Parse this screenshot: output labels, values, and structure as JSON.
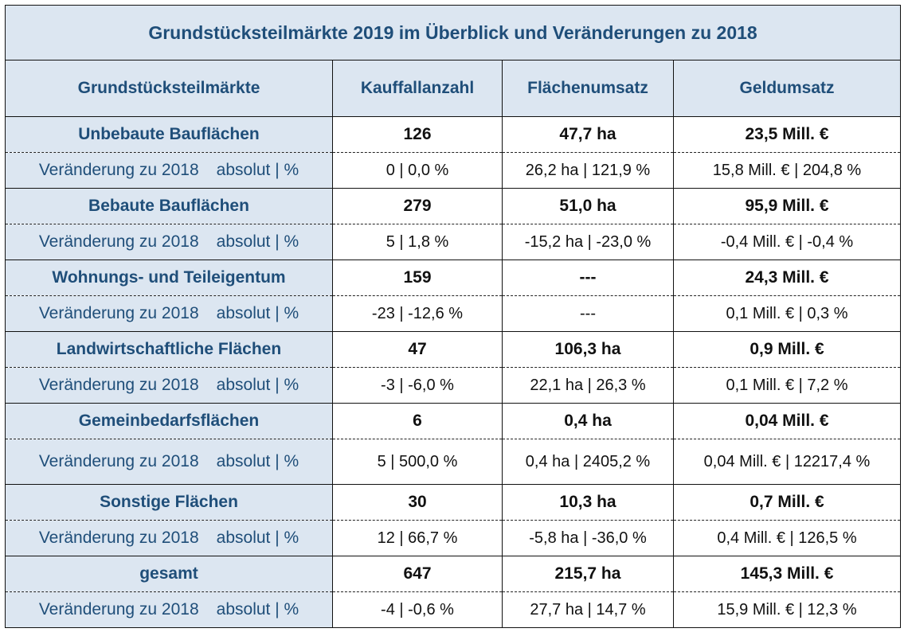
{
  "title": "Grundstücksteilmärkte 2019 im Überblick und Veränderungen zu 2018",
  "columns": [
    "Grundstücksteilmärkte",
    "Kauffallanzahl",
    "Flächenumsatz",
    "Geldumsatz"
  ],
  "change_label": {
    "text": "Veränderung zu 2018",
    "suffix": "absolut | %"
  },
  "colors": {
    "header_bg": "#dce6f1",
    "header_text": "#1f4e79",
    "value_text": "#111111"
  },
  "rows": [
    {
      "name": "Unbebaute  Bauflächen",
      "count": "126",
      "area": "47,7 ha",
      "money": "23,5  Mill. €",
      "change": {
        "count": "0 | 0,0 %",
        "area": "26,2 ha | 121,9 %",
        "money": "15,8 Mill. € | 204,8 %"
      }
    },
    {
      "name": "Bebaute Bauflächen",
      "count": "279",
      "area": "51,0 ha",
      "money": "95,9  Mill. €",
      "change": {
        "count": "5 | 1,8 %",
        "area": "-15,2 ha | -23,0 %",
        "money": "-0,4 Mill. € | -0,4 %"
      }
    },
    {
      "name": "Wohnungs- und Teileigentum",
      "count": "159",
      "area": "---",
      "money": "24,3  Mill. €",
      "change": {
        "count": "-23 | -12,6 %",
        "area": "---",
        "money": "0,1 Mill. € | 0,3 %"
      }
    },
    {
      "name": "Landwirtschaftliche Flächen",
      "count": "47",
      "area": "106,3 ha",
      "money": "0,9  Mill. €",
      "change": {
        "count": "-3 | -6,0 %",
        "area": "22,1 ha | 26,3 %",
        "money": "0,1 Mill. € | 7,2 %"
      }
    },
    {
      "name": "Gemeinbedarfsflächen",
      "count": "6",
      "area": "0,4 ha",
      "money": "0,04  Mill. €",
      "change": {
        "count": "5 | 500,0 %",
        "area": "0,4 ha | 2405,2 %",
        "money": "0,04 Mill. € | 12217,4 %"
      }
    },
    {
      "name": "Sonstige Flächen",
      "count": "30",
      "area": "10,3 ha",
      "money": "0,7  Mill. €",
      "change": {
        "count": "12 | 66,7 %",
        "area": "-5,8 ha | -36,0 %",
        "money": "0,4 Mill. € | 126,5 %"
      }
    },
    {
      "name": "gesamt",
      "count": "647",
      "area": "215,7 ha",
      "money": "145,3  Mill. €",
      "change": {
        "count": "-4 | -0,6 %",
        "area": "27,7 ha | 14,7 %",
        "money": "15,9 Mill. € | 12,3 %"
      }
    }
  ]
}
